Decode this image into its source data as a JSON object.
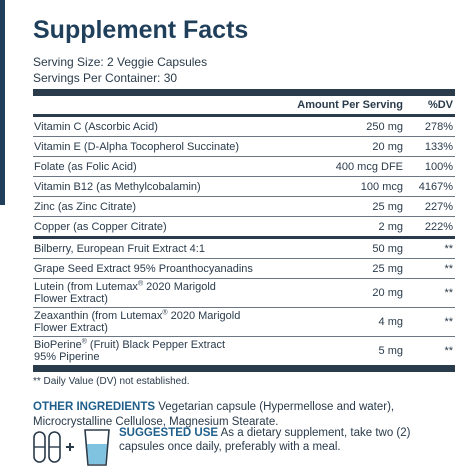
{
  "title": "Supplement Facts",
  "serving_size": "Serving Size: 2 Veggie Capsules",
  "servings_per_container": "Servings Per Container: 30",
  "header": {
    "amount": "Amount Per Serving",
    "dv": "%DV"
  },
  "vitamins": [
    {
      "name": "Vitamin C (Ascorbic Acid)",
      "amount": "250 mg",
      "dv": "278%"
    },
    {
      "name": "Vitamin E (D-Alpha Tocopherol Succinate)",
      "amount": "20 mg",
      "dv": "133%"
    },
    {
      "name": "Folate (as Folic Acid)",
      "amount": "400 mcg DFE",
      "dv": "100%"
    },
    {
      "name": "Vitamin B12 (as Methylcobalamin)",
      "amount": "100 mcg",
      "dv": "4167%"
    },
    {
      "name": "Zinc (as Zinc Citrate)",
      "amount": "25 mg",
      "dv": "227%"
    },
    {
      "name": "Copper (as Copper Citrate)",
      "amount": "2 mg",
      "dv": "222%"
    }
  ],
  "extracts": [
    {
      "name": "Bilberry, European Fruit Extract 4:1",
      "amount": "50 mg",
      "dv": "**"
    },
    {
      "name": "Grape Seed Extract 95% Proanthocyanadins",
      "amount": "25 mg",
      "dv": "**"
    },
    {
      "name_a": "Lutein (from Lutemax",
      "reg": "®",
      "name_b": " 2020 Marigold",
      "name_line2": "Flower Extract)",
      "amount": "20 mg",
      "dv": "**"
    },
    {
      "name_a": "Zeaxanthin (from Lutemax",
      "reg": "®",
      "name_b": " 2020 Marigold",
      "name_line2": "Flower Extract)",
      "amount": "4 mg",
      "dv": "**"
    },
    {
      "name_a": "BioPerine",
      "reg": "®",
      "name_b": " (Fruit) Black Pepper Extract",
      "name_line2": "95% Piperine",
      "amount": "5 mg",
      "dv": "**"
    }
  ],
  "footnote": "** Daily Value (DV) not established.",
  "other_ingredients": {
    "label": "OTHER INGREDIENTS",
    "text": " Vegetarian capsule (Hypermellose and water), Microcrystalline Cellulose, Magnesium Stearate."
  },
  "suggested_use": {
    "label": "SUGGESTED USE",
    "text": " As a dietary supplement, take two (2) capsules once daily, preferably with a meal."
  },
  "icon_names": [
    "capsule-icon",
    "capsule-icon",
    "plus-icon",
    "water-glass-icon"
  ],
  "colors": {
    "navy": "#1f3f5a",
    "accent_blue": "#1f5f8b",
    "text": "#2a3b4b",
    "water": "#7fc3e0"
  }
}
